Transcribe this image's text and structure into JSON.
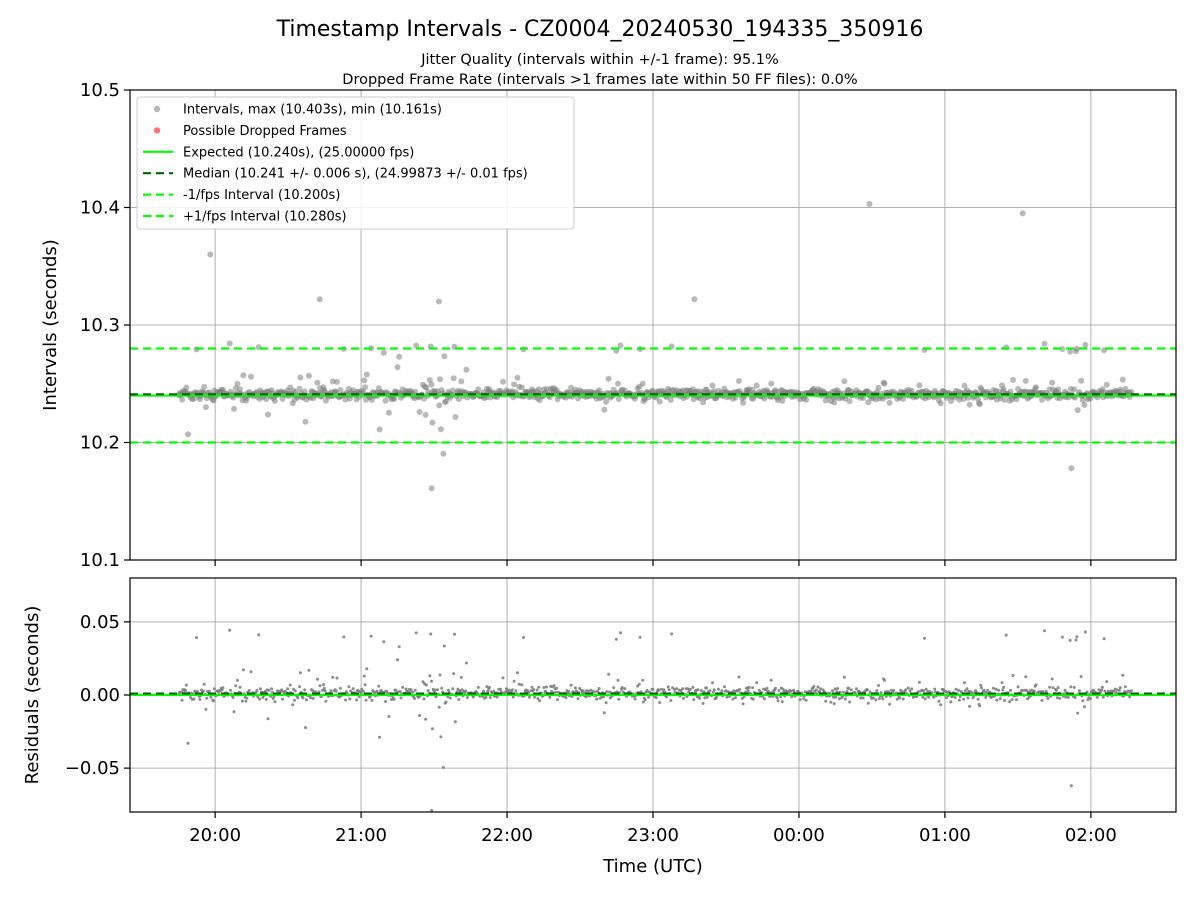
{
  "title": "Timestamp Intervals - CZ0004_20240530_194335_350916",
  "subtitle_lines": [
    "Jitter Quality (intervals within +/-1 frame): 95.1%",
    "Dropped Frame Rate (intervals >1 frames late within 50 FF files): 0.0%"
  ],
  "chart_data": [
    {
      "type": "scatter",
      "panel": "intervals",
      "xlabel": "",
      "ylabel": "Intervals (seconds)",
      "xlim": [
        "19:25",
        "02:35"
      ],
      "ylim": [
        10.1,
        10.5
      ],
      "yticks": [
        "10.1",
        "10.2",
        "10.3",
        "10.4",
        "10.5"
      ],
      "grid": true,
      "legend_position": "top-left",
      "legend": [
        "Intervals, max (10.403s), min (10.161s)",
        "Possible Dropped Frames",
        "Expected (10.240s), (25.00000 fps)",
        "Median (10.241 +/- 0.006 s), (24.99873 +/- 0.01 fps)",
        "-1/fps Interval (10.200s)",
        "+1/fps Interval (10.280s)"
      ],
      "reference_lines": {
        "expected": 10.24,
        "median": 10.241,
        "minus_one_frame": 10.2,
        "plus_one_frame": 10.28
      },
      "series_summary": {
        "name": "Intervals",
        "x_range": [
          "19:45",
          "02:17"
        ],
        "max": 10.403,
        "min": 10.161,
        "median": 10.241,
        "spread_sd": 0.006
      },
      "notable_points": [
        {
          "x": "19:58",
          "y": 10.36
        },
        {
          "x": "00:29",
          "y": 10.403
        },
        {
          "x": "01:32",
          "y": 10.395
        },
        {
          "x": "21:29",
          "y": 10.161
        },
        {
          "x": "01:52",
          "y": 10.178
        },
        {
          "x": "20:43",
          "y": 10.322
        },
        {
          "x": "23:17",
          "y": 10.322
        },
        {
          "x": "21:32",
          "y": 10.32
        }
      ],
      "dropped_frames": []
    },
    {
      "type": "scatter",
      "panel": "residuals",
      "xlabel": "Time (UTC)",
      "ylabel": "Residuals (seconds)",
      "xlim": [
        "19:25",
        "02:35"
      ],
      "ylim": [
        -0.08,
        0.08
      ],
      "xticks": [
        "20:00",
        "21:00",
        "22:00",
        "23:00",
        "00:00",
        "01:00",
        "02:00"
      ],
      "yticks": [
        "−0.05",
        "0.00",
        "0.05"
      ],
      "grid": true,
      "reference_lines": {
        "zero": 0.0,
        "median_offset": 0.001
      }
    }
  ],
  "colors": {
    "points": "#808080",
    "dropped": "#ff4d4d",
    "expected": "#00ff00",
    "median": "#006400",
    "band": "#00ff00",
    "grid": "#b0b0b0"
  }
}
